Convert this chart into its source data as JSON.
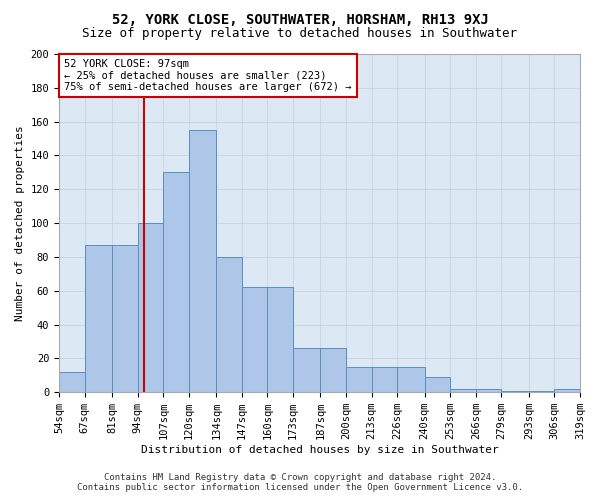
{
  "title": "52, YORK CLOSE, SOUTHWATER, HORSHAM, RH13 9XJ",
  "subtitle": "Size of property relative to detached houses in Southwater",
  "xlabel": "Distribution of detached houses by size in Southwater",
  "ylabel": "Number of detached properties",
  "footer_line1": "Contains HM Land Registry data © Crown copyright and database right 2024.",
  "footer_line2": "Contains public sector information licensed under the Open Government Licence v3.0.",
  "bin_edges": [
    54,
    67,
    81,
    94,
    107,
    120,
    134,
    147,
    160,
    173,
    187,
    200,
    213,
    226,
    240,
    253,
    266,
    279,
    293,
    306,
    319
  ],
  "bar_heights": [
    12,
    87,
    87,
    100,
    130,
    155,
    80,
    62,
    62,
    26,
    26,
    15,
    15,
    15,
    9,
    2,
    2,
    1,
    1,
    2
  ],
  "bar_color": "#aec6e8",
  "bar_edge_color": "#5a8fc0",
  "background_color": "#dde8f5",
  "vline_x": 97,
  "vline_color": "#cc0000",
  "annotation_line1": "52 YORK CLOSE: 97sqm",
  "annotation_line2": "← 25% of detached houses are smaller (223)",
  "annotation_line3": "75% of semi-detached houses are larger (672) →",
  "annotation_box_color": "white",
  "annotation_box_edge_color": "#cc0000",
  "ylim": [
    0,
    200
  ],
  "yticks": [
    0,
    20,
    40,
    60,
    80,
    100,
    120,
    140,
    160,
    180,
    200
  ],
  "grid_color": "#c0cfe0",
  "title_fontsize": 10,
  "subtitle_fontsize": 9,
  "axis_label_fontsize": 8,
  "tick_fontsize": 7.5,
  "annotation_fontsize": 7.5,
  "footer_fontsize": 6.5,
  "ylabel_fontsize": 8
}
